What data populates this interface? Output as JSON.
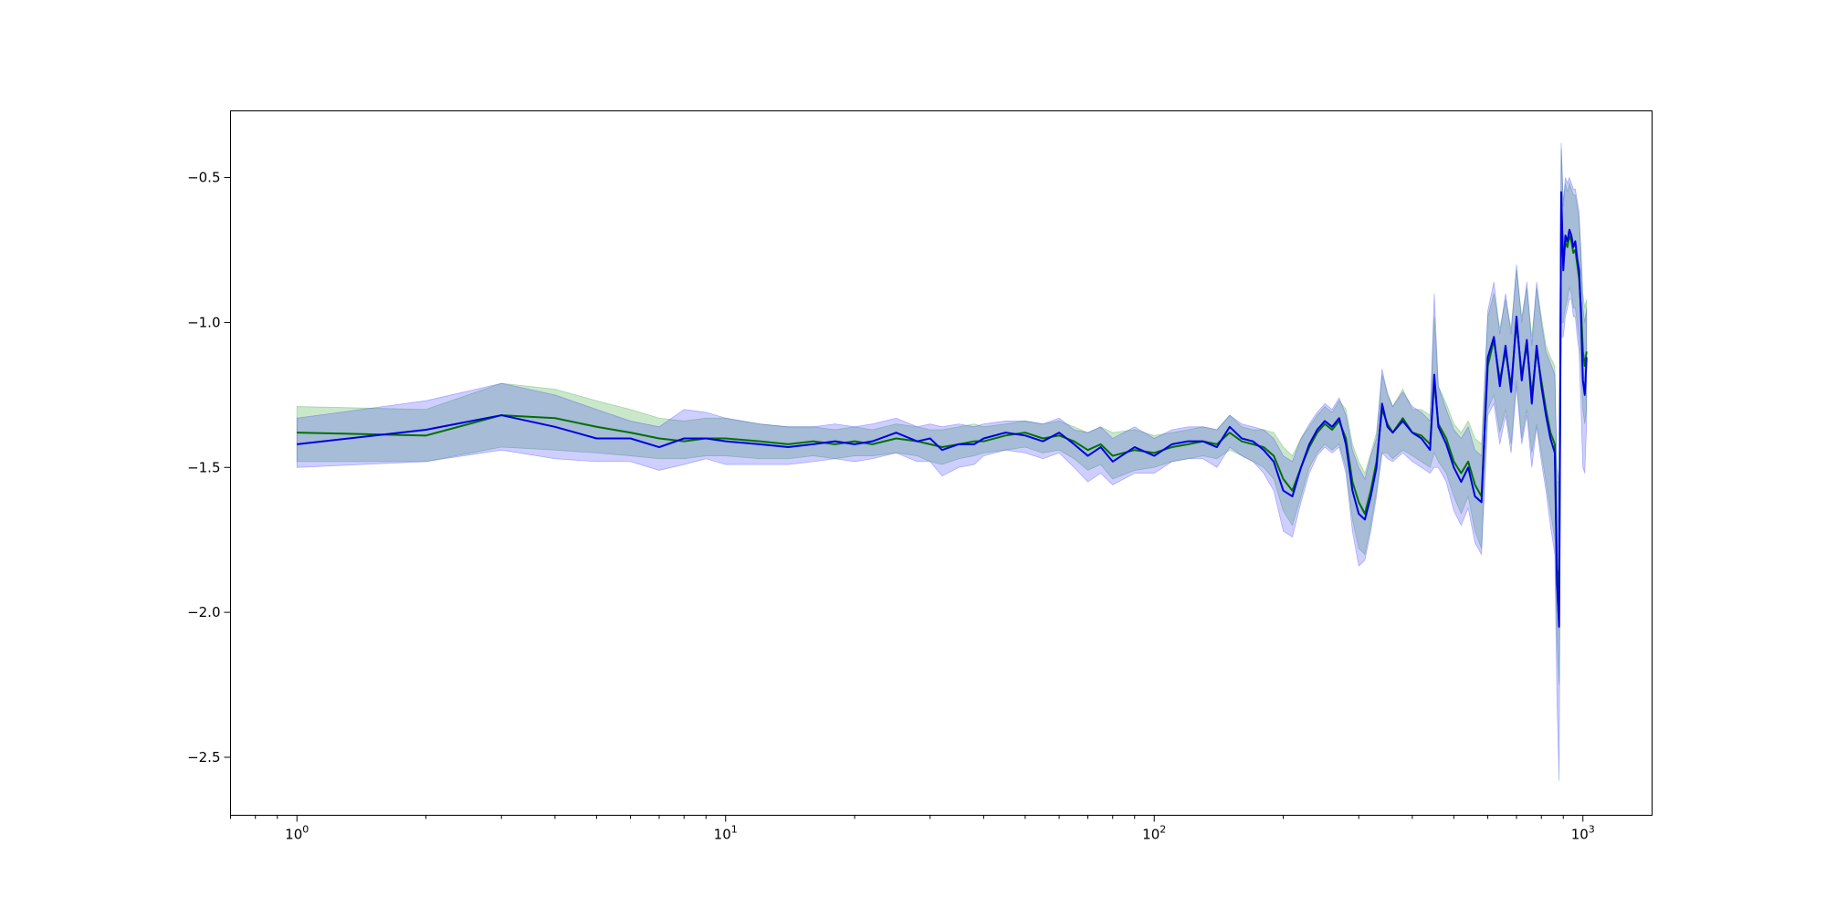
{
  "chart_data": {
    "type": "line",
    "title": "",
    "xlabel": "",
    "ylabel": "",
    "xscale": "log",
    "xlim": [
      0.7,
      1450
    ],
    "ylim": [
      -2.7,
      -0.27
    ],
    "grid": false,
    "legend": "none",
    "x_ticks": [
      {
        "value": 1,
        "base": "10",
        "exp": "0"
      },
      {
        "value": 10,
        "base": "10",
        "exp": "1"
      },
      {
        "value": 100,
        "base": "10",
        "exp": "2"
      },
      {
        "value": 1000,
        "base": "10",
        "exp": "3"
      }
    ],
    "y_ticks": [
      {
        "value": -0.5,
        "label": "−0.5"
      },
      {
        "value": -1.0,
        "label": "−1.0"
      },
      {
        "value": -1.5,
        "label": "−1.5"
      },
      {
        "value": -2.0,
        "label": "−2.0"
      },
      {
        "value": -2.5,
        "label": "−2.5"
      }
    ],
    "series": [
      {
        "color": "#007000",
        "band_color": "#2ca02c",
        "band_opacity": 0.25,
        "x": [
          1,
          2,
          3,
          4,
          5,
          6,
          7,
          8,
          9,
          10,
          12,
          14,
          16,
          18,
          20,
          22,
          25,
          28,
          30,
          32,
          35,
          38,
          40,
          45,
          50,
          55,
          60,
          65,
          70,
          75,
          80,
          90,
          100,
          110,
          120,
          130,
          140,
          150,
          160,
          170,
          180,
          190,
          200,
          210,
          220,
          230,
          240,
          250,
          260,
          270,
          280,
          290,
          300,
          310,
          320,
          330,
          340,
          350,
          360,
          380,
          400,
          420,
          440,
          450,
          460,
          480,
          500,
          520,
          540,
          560,
          580,
          600,
          620,
          640,
          660,
          680,
          700,
          720,
          740,
          760,
          780,
          800,
          820,
          840,
          860,
          870,
          880,
          890,
          900,
          910,
          920,
          930,
          940,
          950,
          960,
          970,
          980,
          990,
          1000,
          1010,
          1020
        ],
        "mean": [
          -1.38,
          -1.39,
          -1.32,
          -1.33,
          -1.36,
          -1.38,
          -1.4,
          -1.41,
          -1.4,
          -1.4,
          -1.41,
          -1.42,
          -1.41,
          -1.42,
          -1.41,
          -1.42,
          -1.4,
          -1.41,
          -1.42,
          -1.43,
          -1.42,
          -1.41,
          -1.41,
          -1.39,
          -1.38,
          -1.4,
          -1.39,
          -1.41,
          -1.44,
          -1.42,
          -1.46,
          -1.44,
          -1.45,
          -1.43,
          -1.42,
          -1.41,
          -1.42,
          -1.38,
          -1.41,
          -1.42,
          -1.43,
          -1.46,
          -1.54,
          -1.58,
          -1.5,
          -1.43,
          -1.38,
          -1.35,
          -1.37,
          -1.34,
          -1.4,
          -1.55,
          -1.62,
          -1.66,
          -1.58,
          -1.48,
          -1.3,
          -1.35,
          -1.38,
          -1.33,
          -1.38,
          -1.39,
          -1.42,
          -1.2,
          -1.35,
          -1.4,
          -1.48,
          -1.52,
          -1.48,
          -1.56,
          -1.6,
          -1.15,
          -1.06,
          -1.2,
          -1.1,
          -1.22,
          -1.0,
          -1.18,
          -1.08,
          -1.25,
          -1.1,
          -1.2,
          -1.3,
          -1.38,
          -1.42,
          -1.85,
          -1.92,
          -0.58,
          -0.8,
          -0.72,
          -0.74,
          -0.7,
          -0.72,
          -0.76,
          -0.75,
          -0.8,
          -0.85,
          -0.95,
          -1.1,
          -1.15,
          -1.1
        ],
        "lower": [
          -1.48,
          -1.48,
          -1.43,
          -1.44,
          -1.45,
          -1.46,
          -1.47,
          -1.47,
          -1.46,
          -1.46,
          -1.47,
          -1.47,
          -1.46,
          -1.47,
          -1.46,
          -1.46,
          -1.45,
          -1.46,
          -1.48,
          -1.49,
          -1.47,
          -1.46,
          -1.45,
          -1.44,
          -1.43,
          -1.45,
          -1.44,
          -1.47,
          -1.51,
          -1.49,
          -1.54,
          -1.51,
          -1.5,
          -1.48,
          -1.47,
          -1.46,
          -1.47,
          -1.44,
          -1.46,
          -1.48,
          -1.5,
          -1.54,
          -1.65,
          -1.7,
          -1.6,
          -1.5,
          -1.45,
          -1.42,
          -1.44,
          -1.42,
          -1.5,
          -1.68,
          -1.78,
          -1.8,
          -1.7,
          -1.58,
          -1.45,
          -1.45,
          -1.47,
          -1.44,
          -1.46,
          -1.48,
          -1.5,
          -1.45,
          -1.48,
          -1.52,
          -1.6,
          -1.66,
          -1.6,
          -1.72,
          -1.78,
          -1.3,
          -1.25,
          -1.38,
          -1.3,
          -1.42,
          -1.2,
          -1.4,
          -1.3,
          -1.45,
          -1.35,
          -1.45,
          -1.55,
          -1.65,
          -1.75,
          -2.1,
          -2.25,
          -1.0,
          -1.0,
          -0.95,
          -0.92,
          -0.88,
          -0.9,
          -0.95,
          -0.95,
          -1.0,
          -1.05,
          -1.15,
          -1.3,
          -1.35,
          -1.3
        ],
        "upper": [
          -1.29,
          -1.3,
          -1.21,
          -1.23,
          -1.27,
          -1.3,
          -1.33,
          -1.34,
          -1.33,
          -1.33,
          -1.35,
          -1.36,
          -1.36,
          -1.37,
          -1.36,
          -1.37,
          -1.35,
          -1.36,
          -1.37,
          -1.37,
          -1.36,
          -1.35,
          -1.36,
          -1.35,
          -1.34,
          -1.35,
          -1.34,
          -1.36,
          -1.38,
          -1.36,
          -1.38,
          -1.37,
          -1.39,
          -1.38,
          -1.37,
          -1.36,
          -1.37,
          -1.32,
          -1.36,
          -1.37,
          -1.37,
          -1.38,
          -1.43,
          -1.46,
          -1.4,
          -1.36,
          -1.32,
          -1.29,
          -1.31,
          -1.27,
          -1.3,
          -1.42,
          -1.48,
          -1.52,
          -1.45,
          -1.38,
          -1.18,
          -1.24,
          -1.29,
          -1.23,
          -1.3,
          -1.3,
          -1.32,
          -0.98,
          -1.22,
          -1.28,
          -1.35,
          -1.38,
          -1.34,
          -1.4,
          -1.42,
          -0.98,
          -0.9,
          -1.02,
          -0.92,
          -1.02,
          -0.82,
          -0.98,
          -0.88,
          -1.05,
          -0.88,
          -0.98,
          -1.08,
          -1.12,
          -1.15,
          -1.55,
          -1.55,
          -0.4,
          -0.58,
          -0.52,
          -0.55,
          -0.52,
          -0.54,
          -0.56,
          -0.56,
          -0.6,
          -0.65,
          -0.75,
          -0.9,
          -0.95,
          -0.92
        ]
      },
      {
        "color": "#0000e0",
        "band_color": "#3a3aff",
        "band_opacity": 0.25,
        "x": [
          1,
          2,
          3,
          4,
          5,
          6,
          7,
          8,
          9,
          10,
          12,
          14,
          16,
          18,
          20,
          22,
          25,
          28,
          30,
          32,
          35,
          38,
          40,
          45,
          50,
          55,
          60,
          65,
          70,
          75,
          80,
          90,
          100,
          110,
          120,
          130,
          140,
          150,
          160,
          170,
          180,
          190,
          200,
          210,
          220,
          230,
          240,
          250,
          260,
          270,
          280,
          290,
          300,
          310,
          320,
          330,
          340,
          350,
          360,
          380,
          400,
          420,
          440,
          450,
          460,
          480,
          500,
          520,
          540,
          560,
          580,
          600,
          620,
          640,
          660,
          680,
          700,
          720,
          740,
          760,
          780,
          800,
          820,
          840,
          860,
          870,
          880,
          890,
          900,
          910,
          920,
          930,
          940,
          950,
          960,
          970,
          980,
          990,
          1000,
          1010,
          1020
        ],
        "mean": [
          -1.42,
          -1.37,
          -1.32,
          -1.36,
          -1.4,
          -1.4,
          -1.43,
          -1.4,
          -1.4,
          -1.41,
          -1.42,
          -1.43,
          -1.42,
          -1.41,
          -1.42,
          -1.41,
          -1.38,
          -1.41,
          -1.4,
          -1.44,
          -1.42,
          -1.42,
          -1.4,
          -1.38,
          -1.39,
          -1.41,
          -1.38,
          -1.42,
          -1.46,
          -1.43,
          -1.48,
          -1.43,
          -1.46,
          -1.42,
          -1.41,
          -1.41,
          -1.43,
          -1.36,
          -1.4,
          -1.41,
          -1.44,
          -1.48,
          -1.58,
          -1.6,
          -1.5,
          -1.42,
          -1.37,
          -1.34,
          -1.36,
          -1.33,
          -1.42,
          -1.58,
          -1.66,
          -1.68,
          -1.6,
          -1.5,
          -1.28,
          -1.36,
          -1.38,
          -1.34,
          -1.38,
          -1.4,
          -1.44,
          -1.18,
          -1.36,
          -1.42,
          -1.5,
          -1.55,
          -1.5,
          -1.6,
          -1.62,
          -1.12,
          -1.05,
          -1.22,
          -1.08,
          -1.24,
          -0.98,
          -1.2,
          -1.06,
          -1.28,
          -1.08,
          -1.22,
          -1.32,
          -1.4,
          -1.45,
          -1.9,
          -2.05,
          -0.55,
          -0.82,
          -0.7,
          -0.72,
          -0.68,
          -0.7,
          -0.74,
          -0.72,
          -0.78,
          -0.82,
          -0.98,
          -1.2,
          -1.25,
          -1.12
        ],
        "lower": [
          -1.5,
          -1.48,
          -1.44,
          -1.47,
          -1.48,
          -1.48,
          -1.51,
          -1.49,
          -1.47,
          -1.49,
          -1.49,
          -1.49,
          -1.48,
          -1.47,
          -1.48,
          -1.47,
          -1.45,
          -1.48,
          -1.48,
          -1.53,
          -1.5,
          -1.49,
          -1.46,
          -1.44,
          -1.45,
          -1.47,
          -1.45,
          -1.5,
          -1.55,
          -1.52,
          -1.56,
          -1.52,
          -1.52,
          -1.48,
          -1.47,
          -1.47,
          -1.5,
          -1.43,
          -1.46,
          -1.48,
          -1.52,
          -1.58,
          -1.72,
          -1.74,
          -1.62,
          -1.52,
          -1.46,
          -1.43,
          -1.45,
          -1.43,
          -1.52,
          -1.72,
          -1.84,
          -1.82,
          -1.72,
          -1.6,
          -1.45,
          -1.47,
          -1.48,
          -1.45,
          -1.48,
          -1.5,
          -1.52,
          -1.5,
          -1.5,
          -1.55,
          -1.65,
          -1.7,
          -1.64,
          -1.76,
          -1.8,
          -1.32,
          -1.28,
          -1.42,
          -1.32,
          -1.45,
          -1.22,
          -1.42,
          -1.32,
          -1.5,
          -1.36,
          -1.48,
          -1.58,
          -1.7,
          -1.8,
          -2.3,
          -2.58,
          -1.05,
          -1.05,
          -0.98,
          -0.95,
          -0.92,
          -0.92,
          -0.98,
          -0.98,
          -1.05,
          -1.1,
          -1.3,
          -1.5,
          -1.52,
          -1.35
        ],
        "upper": [
          -1.33,
          -1.27,
          -1.21,
          -1.25,
          -1.3,
          -1.34,
          -1.36,
          -1.3,
          -1.31,
          -1.33,
          -1.35,
          -1.36,
          -1.36,
          -1.35,
          -1.36,
          -1.35,
          -1.33,
          -1.36,
          -1.35,
          -1.36,
          -1.35,
          -1.36,
          -1.35,
          -1.34,
          -1.34,
          -1.35,
          -1.33,
          -1.37,
          -1.38,
          -1.36,
          -1.4,
          -1.36,
          -1.4,
          -1.37,
          -1.36,
          -1.36,
          -1.37,
          -1.32,
          -1.35,
          -1.36,
          -1.37,
          -1.4,
          -1.46,
          -1.48,
          -1.4,
          -1.35,
          -1.31,
          -1.28,
          -1.3,
          -1.26,
          -1.32,
          -1.44,
          -1.5,
          -1.54,
          -1.46,
          -1.4,
          -1.16,
          -1.25,
          -1.29,
          -1.24,
          -1.29,
          -1.31,
          -1.34,
          -0.9,
          -1.22,
          -1.3,
          -1.37,
          -1.4,
          -1.36,
          -1.44,
          -1.46,
          -0.96,
          -0.86,
          -1.04,
          -0.9,
          -1.04,
          -0.8,
          -1.0,
          -0.86,
          -1.08,
          -0.86,
          -1.0,
          -1.1,
          -1.14,
          -1.18,
          -1.5,
          -1.55,
          -0.38,
          -0.6,
          -0.5,
          -0.52,
          -0.5,
          -0.52,
          -0.54,
          -0.54,
          -0.58,
          -0.62,
          -0.78,
          -0.95,
          -1.0,
          -0.95
        ]
      }
    ]
  }
}
